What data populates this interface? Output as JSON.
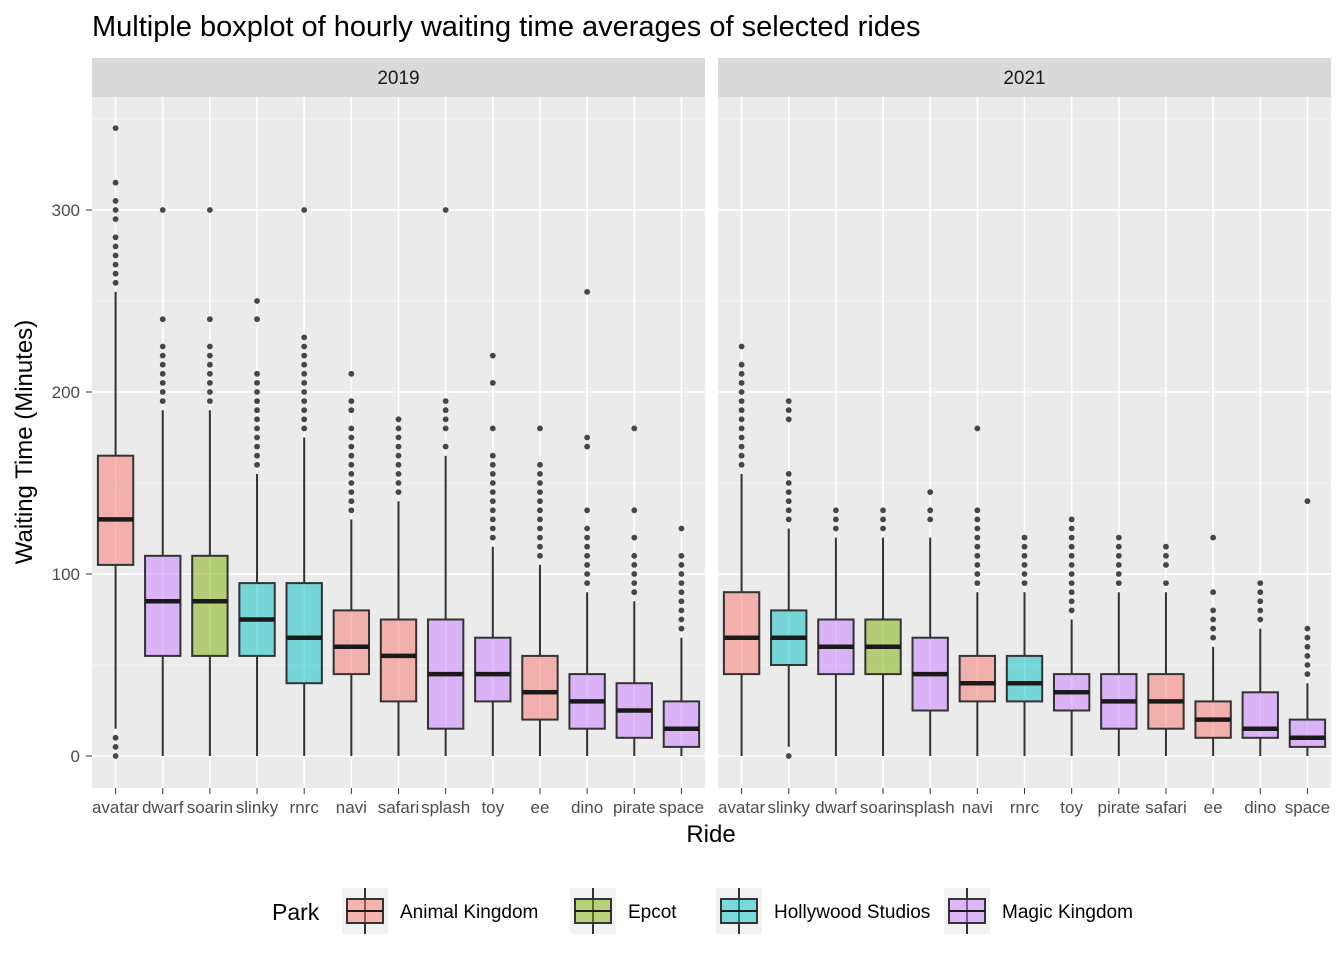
{
  "chart_data": {
    "type": "boxplot",
    "title": "Multiple boxplot of hourly waiting time averages of selected rides",
    "xlabel": "Ride",
    "ylabel": "Waiting Time (Minutes)",
    "y_ticks": [
      0,
      100,
      200,
      300
    ],
    "ylim": [
      -10,
      360
    ],
    "grid": true,
    "legend": {
      "title": "Park",
      "position": "bottom",
      "entries": [
        {
          "name": "Animal Kingdom",
          "color": "#F8766D"
        },
        {
          "name": "Epcot",
          "color": "#7CAE00"
        },
        {
          "name": "Hollywood Studios",
          "color": "#00BFC4"
        },
        {
          "name": "Magic Kingdom",
          "color": "#C77CFF"
        }
      ]
    },
    "panels": [
      {
        "label": "2019",
        "boxes": [
          {
            "ride": "avatar",
            "park": "Animal Kingdom",
            "min": 15,
            "q1": 105,
            "median": 130,
            "q3": 165,
            "max": 255,
            "outliers": [
              0,
              5,
              10,
              260,
              265,
              270,
              275,
              280,
              285,
              295,
              300,
              305,
              315,
              345
            ]
          },
          {
            "ride": "dwarf",
            "park": "Magic Kingdom",
            "min": 0,
            "q1": 55,
            "median": 85,
            "q3": 110,
            "max": 190,
            "outliers": [
              195,
              200,
              205,
              210,
              215,
              220,
              225,
              240,
              300
            ]
          },
          {
            "ride": "soarin",
            "park": "Epcot",
            "min": 0,
            "q1": 55,
            "median": 85,
            "q3": 110,
            "max": 190,
            "outliers": [
              195,
              200,
              205,
              210,
              215,
              220,
              225,
              240,
              300
            ]
          },
          {
            "ride": "slinky",
            "park": "Hollywood Studios",
            "min": 0,
            "q1": 55,
            "median": 75,
            "q3": 95,
            "max": 155,
            "outliers": [
              160,
              165,
              170,
              175,
              180,
              185,
              190,
              195,
              200,
              205,
              210,
              240,
              250
            ]
          },
          {
            "ride": "rnrc",
            "park": "Hollywood Studios",
            "min": 0,
            "q1": 40,
            "median": 65,
            "q3": 95,
            "max": 175,
            "outliers": [
              180,
              185,
              190,
              195,
              200,
              205,
              210,
              215,
              220,
              225,
              230,
              300
            ]
          },
          {
            "ride": "navi",
            "park": "Animal Kingdom",
            "min": 0,
            "q1": 45,
            "median": 60,
            "q3": 80,
            "max": 130,
            "outliers": [
              135,
              140,
              145,
              150,
              155,
              160,
              165,
              170,
              175,
              180,
              190,
              195,
              210
            ]
          },
          {
            "ride": "safari",
            "park": "Animal Kingdom",
            "min": 0,
            "q1": 30,
            "median": 55,
            "q3": 75,
            "max": 140,
            "outliers": [
              145,
              150,
              155,
              160,
              165,
              170,
              175,
              180,
              185
            ]
          },
          {
            "ride": "splash",
            "park": "Magic Kingdom",
            "min": 0,
            "q1": 15,
            "median": 45,
            "q3": 75,
            "max": 165,
            "outliers": [
              170,
              180,
              185,
              190,
              195,
              300
            ]
          },
          {
            "ride": "toy",
            "park": "Magic Kingdom",
            "min": 0,
            "q1": 30,
            "median": 45,
            "q3": 65,
            "max": 115,
            "outliers": [
              120,
              125,
              130,
              135,
              140,
              145,
              150,
              155,
              160,
              165,
              180,
              205,
              220
            ]
          },
          {
            "ride": "ee",
            "park": "Animal Kingdom",
            "min": 0,
            "q1": 20,
            "median": 35,
            "q3": 55,
            "max": 105,
            "outliers": [
              110,
              115,
              120,
              125,
              130,
              135,
              140,
              145,
              150,
              155,
              160,
              180
            ]
          },
          {
            "ride": "dino",
            "park": "Magic Kingdom",
            "min": 0,
            "q1": 15,
            "median": 30,
            "q3": 45,
            "max": 90,
            "outliers": [
              95,
              100,
              105,
              110,
              115,
              120,
              125,
              135,
              170,
              175,
              255
            ]
          },
          {
            "ride": "pirate",
            "park": "Magic Kingdom",
            "min": 0,
            "q1": 10,
            "median": 25,
            "q3": 40,
            "max": 85,
            "outliers": [
              90,
              95,
              100,
              105,
              110,
              120,
              135,
              180
            ]
          },
          {
            "ride": "space",
            "park": "Magic Kingdom",
            "min": 0,
            "q1": 5,
            "median": 15,
            "q3": 30,
            "max": 65,
            "outliers": [
              70,
              75,
              80,
              85,
              90,
              95,
              100,
              105,
              110,
              125
            ]
          }
        ]
      },
      {
        "label": "2021",
        "boxes": [
          {
            "ride": "avatar",
            "park": "Animal Kingdom",
            "min": 0,
            "q1": 45,
            "median": 65,
            "q3": 90,
            "max": 155,
            "outliers": [
              160,
              165,
              170,
              175,
              180,
              185,
              190,
              195,
              200,
              205,
              210,
              215,
              225
            ]
          },
          {
            "ride": "slinky",
            "park": "Hollywood Studios",
            "min": 5,
            "q1": 50,
            "median": 65,
            "q3": 80,
            "max": 125,
            "outliers": [
              0,
              130,
              135,
              140,
              145,
              150,
              155,
              185,
              190,
              195
            ]
          },
          {
            "ride": "dwarf",
            "park": "Magic Kingdom",
            "min": 0,
            "q1": 45,
            "median": 60,
            "q3": 75,
            "max": 120,
            "outliers": [
              125,
              130,
              135
            ]
          },
          {
            "ride": "soarin",
            "park": "Epcot",
            "min": 0,
            "q1": 45,
            "median": 60,
            "q3": 75,
            "max": 120,
            "outliers": [
              125,
              130,
              135
            ]
          },
          {
            "ride": "splash",
            "park": "Magic Kingdom",
            "min": 0,
            "q1": 25,
            "median": 45,
            "q3": 65,
            "max": 120,
            "outliers": [
              130,
              135,
              145
            ]
          },
          {
            "ride": "navi",
            "park": "Animal Kingdom",
            "min": 0,
            "q1": 30,
            "median": 40,
            "q3": 55,
            "max": 90,
            "outliers": [
              95,
              100,
              105,
              110,
              115,
              120,
              125,
              130,
              135,
              180
            ]
          },
          {
            "ride": "rnrc",
            "park": "Hollywood Studios",
            "min": 0,
            "q1": 30,
            "median": 40,
            "q3": 55,
            "max": 90,
            "outliers": [
              95,
              100,
              105,
              110,
              115,
              120
            ]
          },
          {
            "ride": "toy",
            "park": "Magic Kingdom",
            "min": 0,
            "q1": 25,
            "median": 35,
            "q3": 45,
            "max": 75,
            "outliers": [
              80,
              85,
              90,
              95,
              100,
              105,
              110,
              115,
              120,
              125,
              130
            ]
          },
          {
            "ride": "pirate",
            "park": "Magic Kingdom",
            "min": 0,
            "q1": 15,
            "median": 30,
            "q3": 45,
            "max": 90,
            "outliers": [
              95,
              100,
              105,
              110,
              115,
              120
            ]
          },
          {
            "ride": "safari",
            "park": "Animal Kingdom",
            "min": 0,
            "q1": 15,
            "median": 30,
            "q3": 45,
            "max": 90,
            "outliers": [
              95,
              105,
              110,
              115
            ]
          },
          {
            "ride": "ee",
            "park": "Animal Kingdom",
            "min": 0,
            "q1": 10,
            "median": 20,
            "q3": 30,
            "max": 60,
            "outliers": [
              65,
              70,
              75,
              80,
              90,
              120
            ]
          },
          {
            "ride": "dino",
            "park": "Magic Kingdom",
            "min": 0,
            "q1": 10,
            "median": 15,
            "q3": 35,
            "max": 70,
            "outliers": [
              75,
              80,
              85,
              90,
              95
            ]
          },
          {
            "ride": "space",
            "park": "Magic Kingdom",
            "min": 0,
            "q1": 5,
            "median": 10,
            "q3": 20,
            "max": 40,
            "outliers": [
              45,
              50,
              55,
              60,
              65,
              70,
              140
            ]
          }
        ]
      }
    ]
  }
}
